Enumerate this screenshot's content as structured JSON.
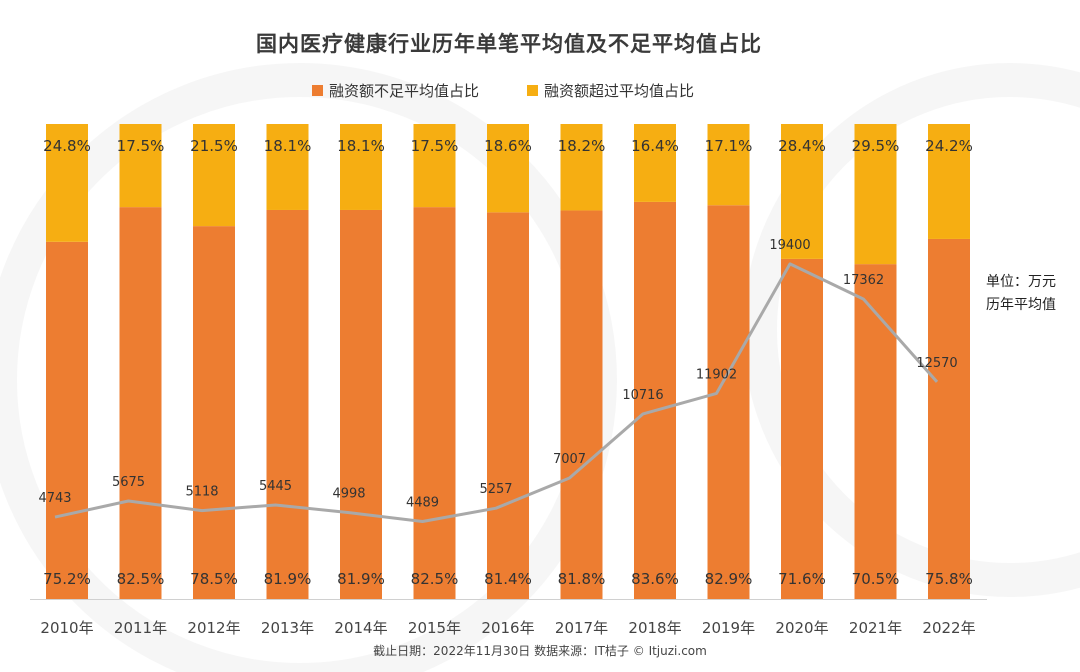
{
  "title": "国内医疗健康行业历年单笔平均值及不足平均值占比",
  "legend": {
    "below": "融资额不足平均值占比",
    "above": "融资额超过平均值占比"
  },
  "colors": {
    "below": "#ED7D31",
    "above": "#F6AE12",
    "line": "#A9A9A9"
  },
  "unit_note": {
    "line1": "单位：万元",
    "line2": "历年平均值"
  },
  "footer": "截止日期：2022年11月30日   数据来源：IT桔子 © Itjuzi.com",
  "chart_data": {
    "type": "bar",
    "stacked": true,
    "title": "国内医疗健康行业历年单笔平均值及不足平均值占比",
    "categories": [
      "2010年",
      "2011年",
      "2012年",
      "2013年",
      "2014年",
      "2015年",
      "2016年",
      "2017年",
      "2018年",
      "2019年",
      "2020年",
      "2021年",
      "2022年"
    ],
    "series": [
      {
        "name": "融资额不足平均值占比",
        "values": [
          75.2,
          82.5,
          78.5,
          81.9,
          81.9,
          82.5,
          81.4,
          81.8,
          83.6,
          82.9,
          71.6,
          70.5,
          75.8
        ],
        "labels": [
          "75.2%",
          "82.5%",
          "78.5%",
          "81.9%",
          "81.9%",
          "82.5%",
          "81.4%",
          "81.8%",
          "83.6%",
          "82.9%",
          "71.6%",
          "70.5%",
          "75.8%"
        ]
      },
      {
        "name": "融资额超过平均值占比",
        "values": [
          24.8,
          17.5,
          21.5,
          18.1,
          18.1,
          17.5,
          18.6,
          18.2,
          16.4,
          17.1,
          28.4,
          29.5,
          24.2
        ],
        "labels": [
          "24.8%",
          "17.5%",
          "21.5%",
          "18.1%",
          "18.1%",
          "17.5%",
          "18.6%",
          "18.2%",
          "16.4%",
          "17.1%",
          "28.4%",
          "29.5%",
          "24.2%"
        ]
      }
    ],
    "line": {
      "name": "历年平均值",
      "unit": "万元",
      "values": [
        4743,
        5675,
        5118,
        5445,
        4998,
        4489,
        5257,
        7007,
        10716,
        11902,
        19400,
        17362,
        12570
      ],
      "labels": [
        "4743",
        "5675",
        "5118",
        "5445",
        "4998",
        "4489",
        "5257",
        "7007",
        "10716",
        "11902",
        "19400",
        "17362",
        "12570"
      ]
    },
    "ylim": [
      0,
      100
    ],
    "xlabel": "",
    "ylabel": ""
  }
}
